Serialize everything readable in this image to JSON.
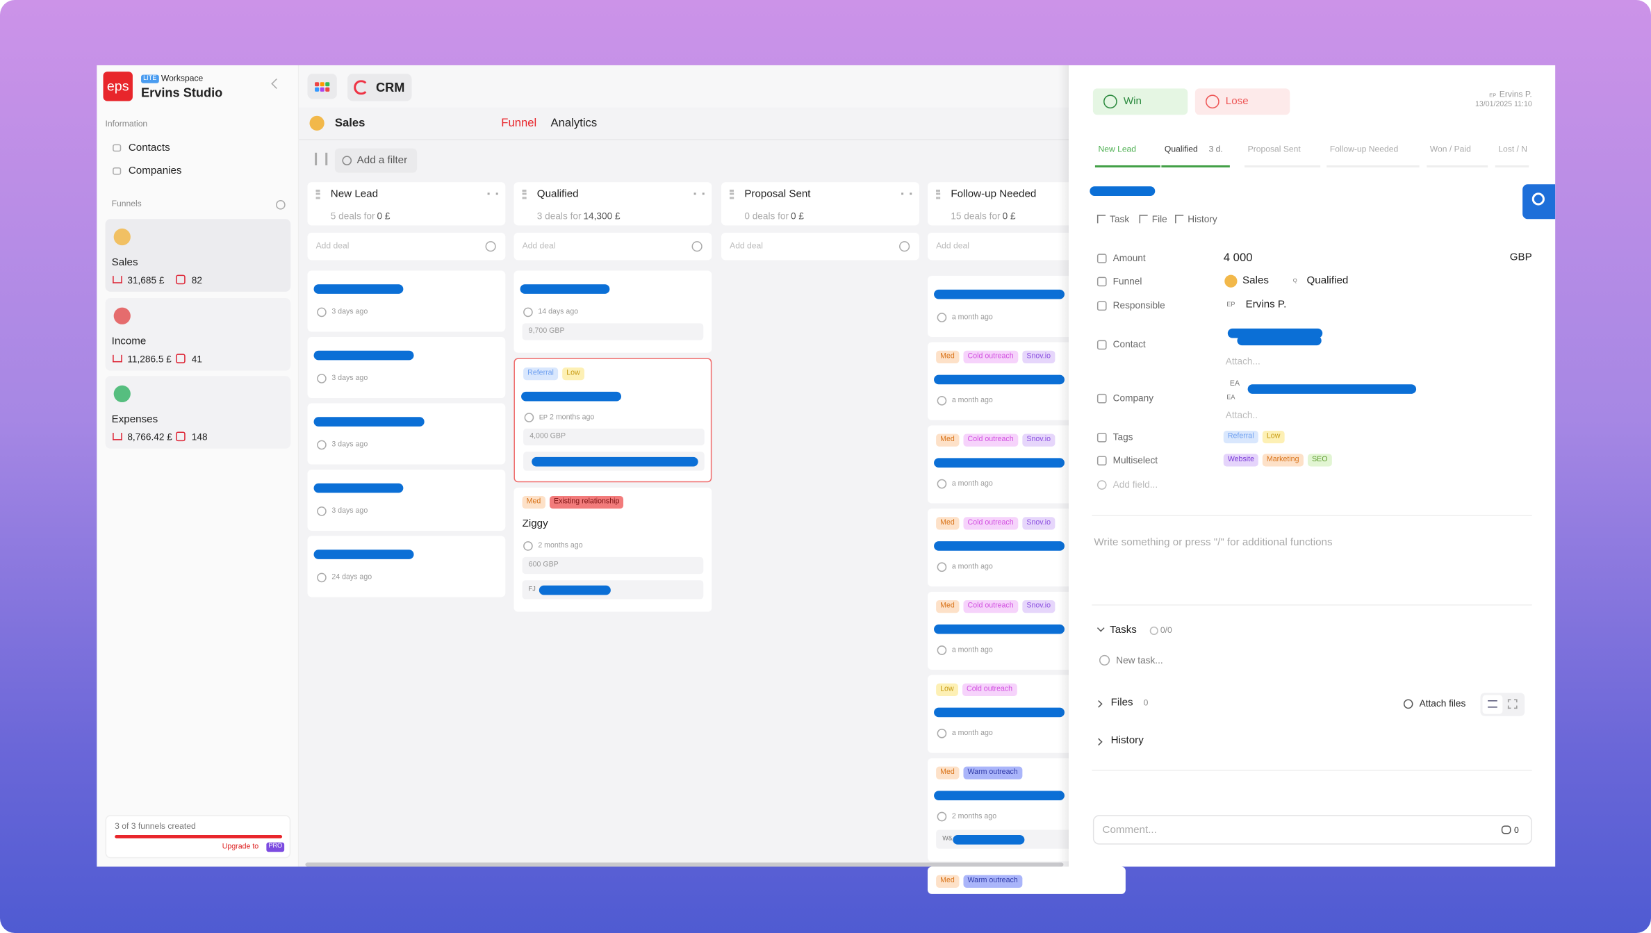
{
  "sidebar": {
    "logo": "eps",
    "workspace_badge": "LITE",
    "workspace_label": "Workspace",
    "workspace_name": "Ervins Studio",
    "section_information": "Information",
    "nav": [
      "Contacts",
      "Companies"
    ],
    "section_funnels": "Funnels",
    "funnels": [
      {
        "name": "Sales",
        "amount": "31,685 £",
        "count": "82"
      },
      {
        "name": "Income",
        "amount": "11,286.5 £",
        "count": "41"
      },
      {
        "name": "Expenses",
        "amount": "8,766.42 £",
        "count": "148"
      }
    ],
    "funnel_limit": "3 of 3 funnels created",
    "upgrade": "Upgrade to",
    "pro": "PRO"
  },
  "topbar": {
    "app": "CRM",
    "board_title": "Sales",
    "tabs": [
      "Funnel",
      "Analytics"
    ],
    "filter": "Add a filter"
  },
  "board": {
    "add_deal": "Add deal",
    "columns": [
      {
        "title": "New Lead",
        "deals": "5 deals for",
        "amount": "0 £",
        "cards": [
          {
            "time": "3 days ago"
          },
          {
            "time": "3 days ago"
          },
          {
            "time": "3 days ago"
          },
          {
            "time": "3 days ago"
          },
          {
            "time": "24 days ago"
          }
        ]
      },
      {
        "title": "Qualified",
        "deals": "3 deals for",
        "amount": "14,300 £",
        "cards": [
          {
            "time": "14 days ago",
            "amount": "9,700 GBP"
          },
          {
            "tags": [
              {
                "label": "Referral",
                "color": "blue"
              },
              {
                "label": "Low",
                "color": "yellow"
              }
            ],
            "initials": "EP",
            "time": "2 months ago",
            "amount": "4,000 GBP",
            "selected": true,
            "contact": ""
          },
          {
            "tags": [
              {
                "label": "Med",
                "color": "orange"
              },
              {
                "label": "Existing relationship",
                "color": "red"
              }
            ],
            "name": "Ziggy",
            "time": "2 months ago",
            "amount": "600 GBP",
            "contact": "FJ"
          }
        ]
      },
      {
        "title": "Proposal Sent",
        "deals": "0 deals for",
        "amount": "0 £",
        "cards": []
      },
      {
        "title": "Follow-up Needed",
        "deals": "15 deals for",
        "amount": "0 £",
        "cards": [
          {
            "time": "a month ago"
          },
          {
            "tags": [
              {
                "label": "Med",
                "color": "orange"
              },
              {
                "label": "Cold outreach",
                "color": "pink"
              },
              {
                "label": "Snov.io",
                "color": "violet"
              }
            ],
            "time": "a month ago"
          },
          {
            "tags": [
              {
                "label": "Med",
                "color": "orange"
              },
              {
                "label": "Cold outreach",
                "color": "pink"
              },
              {
                "label": "Snov.io",
                "color": "violet"
              }
            ],
            "time": "a month ago"
          },
          {
            "tags": [
              {
                "label": "Med",
                "color": "orange"
              },
              {
                "label": "Cold outreach",
                "color": "pink"
              },
              {
                "label": "Snov.io",
                "color": "violet"
              }
            ],
            "time": "a month ago"
          },
          {
            "tags": [
              {
                "label": "Med",
                "color": "orange"
              },
              {
                "label": "Cold outreach",
                "color": "pink"
              },
              {
                "label": "Snov.io",
                "color": "violet"
              }
            ],
            "time": "a month ago"
          },
          {
            "tags": [
              {
                "label": "Low",
                "color": "yellow"
              },
              {
                "label": "Cold outreach",
                "color": "pink"
              }
            ],
            "time": "a month ago"
          },
          {
            "tags": [
              {
                "label": "Med",
                "color": "orange"
              },
              {
                "label": "Warm outreach",
                "color": "indigo"
              }
            ],
            "time": "2 months ago",
            "contact": "W&"
          },
          {
            "tags": [
              {
                "label": "Med",
                "color": "orange"
              },
              {
                "label": "Warm outreach",
                "color": "indigo"
              }
            ]
          }
        ]
      }
    ]
  },
  "detail": {
    "win": "Win",
    "lose": "Lose",
    "author_initials": "EP",
    "author": "Ervins P.",
    "date": "13/01/2025 11:10",
    "stages": [
      "New Lead",
      "Qualified",
      "Proposal Sent",
      "Follow-up Needed",
      "Won / Paid",
      "Lost / N"
    ],
    "stage_days": "3 d.",
    "actions": [
      "Task",
      "File",
      "History"
    ],
    "fields": [
      {
        "label": "Amount",
        "value": "4 000",
        "extra": "GBP"
      },
      {
        "label": "Funnel",
        "value": "Sales",
        "initials": "Q",
        "extra": "Qualified"
      },
      {
        "label": "Responsible",
        "initials": "EP",
        "value": "Ervins P."
      },
      {
        "label": "Contact",
        "attach": "Attach..."
      },
      {
        "label": "Company",
        "initials": "EA",
        "attach": "Attach.."
      },
      {
        "label": "Tags",
        "tags": [
          {
            "label": "Referral",
            "color": "blue"
          },
          {
            "label": "Low",
            "color": "yellow"
          }
        ]
      },
      {
        "label": "Multiselect",
        "tags": [
          {
            "label": "Website",
            "color": "purple"
          },
          {
            "label": "Marketing",
            "color": "orange"
          },
          {
            "label": "SEO",
            "color": "green"
          }
        ]
      }
    ],
    "add_field": "Add field...",
    "editor_placeholder": "Write something or press \"/\" for additional functions",
    "tasks": "Tasks",
    "tasks_count": "0/0",
    "new_task": "New task...",
    "files": "Files",
    "files_count": "0",
    "attach_files": "Attach files",
    "history": "History",
    "comment": "Comment...",
    "comment_count": "0"
  }
}
